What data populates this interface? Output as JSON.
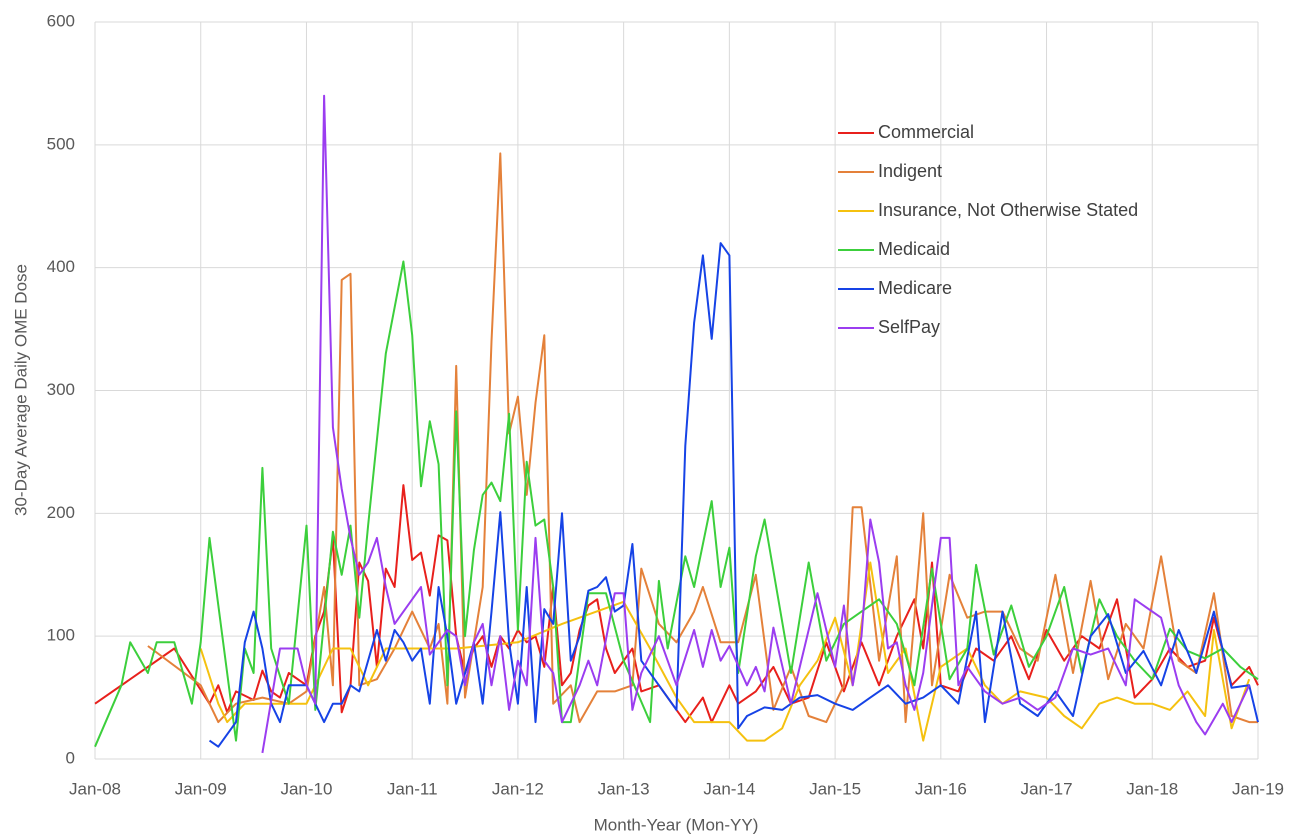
{
  "chart_data": {
    "type": "line",
    "xlabel": "Month-Year (Mon-YY)",
    "ylabel": "30-Day Average Daily OME Dose",
    "xlim": [
      "2008-01",
      "2019-01"
    ],
    "xticks": [
      {
        "value": "2008-01",
        "label": "Jan-08"
      },
      {
        "value": "2009-01",
        "label": "Jan-09"
      },
      {
        "value": "2010-01",
        "label": "Jan-10"
      },
      {
        "value": "2011-01",
        "label": "Jan-11"
      },
      {
        "value": "2012-01",
        "label": "Jan-12"
      },
      {
        "value": "2013-01",
        "label": "Jan-13"
      },
      {
        "value": "2014-01",
        "label": "Jan-14"
      },
      {
        "value": "2015-01",
        "label": "Jan-15"
      },
      {
        "value": "2016-01",
        "label": "Jan-16"
      },
      {
        "value": "2017-01",
        "label": "Jan-17"
      },
      {
        "value": "2018-01",
        "label": "Jan-18"
      },
      {
        "value": "2019-01",
        "label": "Jan-19"
      }
    ],
    "ylim": [
      0,
      600
    ],
    "yticks": [
      0,
      100,
      200,
      300,
      400,
      500,
      600
    ],
    "grid": true,
    "legend": "upper right",
    "series": [
      {
        "name": "Commercial",
        "color": "#e8201c",
        "x": [
          "2008-01",
          "2008-10",
          "2009-02",
          "2009-03",
          "2009-04",
          "2009-05",
          "2009-07",
          "2009-08",
          "2009-09",
          "2009-10",
          "2009-11",
          "2010-01",
          "2010-02",
          "2010-03",
          "2010-04",
          "2010-05",
          "2010-06",
          "2010-07",
          "2010-08",
          "2010-09",
          "2010-10",
          "2010-11",
          "2010-12",
          "2011-01",
          "2011-02",
          "2011-03",
          "2011-04",
          "2011-05",
          "2011-06",
          "2011-07",
          "2011-08",
          "2011-09",
          "2011-10",
          "2011-11",
          "2011-12",
          "2012-01",
          "2012-02",
          "2012-03",
          "2012-04",
          "2012-05",
          "2012-06",
          "2012-07",
          "2012-08",
          "2012-09",
          "2012-10",
          "2012-11",
          "2012-12",
          "2013-02",
          "2013-03",
          "2013-05",
          "2013-07",
          "2013-08",
          "2013-10",
          "2013-11",
          "2014-01",
          "2014-02",
          "2014-04",
          "2014-06",
          "2014-08",
          "2014-10",
          "2014-12",
          "2015-02",
          "2015-04",
          "2015-06",
          "2015-08",
          "2015-10",
          "2015-11",
          "2015-12",
          "2016-01",
          "2016-03",
          "2016-05",
          "2016-07",
          "2016-09",
          "2016-11",
          "2017-01",
          "2017-03",
          "2017-05",
          "2017-07",
          "2017-09",
          "2017-11",
          "2018-01",
          "2018-03",
          "2018-05",
          "2018-07",
          "2018-08",
          "2018-10",
          "2018-12",
          "2019-01"
        ],
        "values": [
          45,
          90,
          45,
          60,
          38,
          55,
          48,
          72,
          55,
          50,
          70,
          60,
          100,
          120,
          180,
          38,
          60,
          160,
          145,
          75,
          155,
          140,
          223,
          162,
          168,
          133,
          182,
          178,
          100,
          70,
          90,
          100,
          75,
          100,
          90,
          105,
          95,
          100,
          75,
          140,
          60,
          70,
          105,
          125,
          130,
          90,
          70,
          90,
          55,
          60,
          40,
          30,
          50,
          30,
          60,
          45,
          55,
          75,
          45,
          50,
          95,
          55,
          95,
          60,
          100,
          130,
          90,
          160,
          60,
          55,
          90,
          80,
          100,
          65,
          105,
          80,
          100,
          90,
          130,
          50,
          65,
          90,
          75,
          80,
          115,
          60,
          75,
          60
        ]
      },
      {
        "name": "Indigent",
        "color": "#e4813a",
        "x": [
          "2008-07",
          "2009-01",
          "2009-03",
          "2009-05",
          "2009-08",
          "2009-11",
          "2010-01",
          "2010-03",
          "2010-04",
          "2010-05",
          "2010-06",
          "2010-07",
          "2010-09",
          "2010-11",
          "2011-01",
          "2011-03",
          "2011-04",
          "2011-05",
          "2011-06",
          "2011-07",
          "2011-09",
          "2011-10",
          "2011-11",
          "2011-12",
          "2012-01",
          "2012-02",
          "2012-03",
          "2012-04",
          "2012-05",
          "2012-07",
          "2012-08",
          "2012-10",
          "2012-12",
          "2013-02",
          "2013-03",
          "2013-05",
          "2013-07",
          "2013-09",
          "2013-10",
          "2013-12",
          "2014-02",
          "2014-04",
          "2014-06",
          "2014-08",
          "2014-10",
          "2014-12",
          "2015-02",
          "2015-03",
          "2015-04",
          "2015-06",
          "2015-08",
          "2015-09",
          "2015-11",
          "2015-12",
          "2016-02",
          "2016-04",
          "2016-06",
          "2016-08",
          "2016-10",
          "2016-12",
          "2017-02",
          "2017-04",
          "2017-06",
          "2017-08",
          "2017-10",
          "2017-12",
          "2018-02",
          "2018-04",
          "2018-06",
          "2018-08",
          "2018-10",
          "2018-12",
          "2019-01"
        ],
        "values": [
          92,
          60,
          30,
          45,
          50,
          45,
          55,
          140,
          60,
          390,
          395,
          60,
          65,
          90,
          120,
          90,
          110,
          45,
          320,
          50,
          140,
          340,
          493,
          265,
          295,
          215,
          290,
          345,
          45,
          60,
          30,
          55,
          55,
          60,
          155,
          110,
          95,
          120,
          140,
          95,
          95,
          150,
          40,
          75,
          35,
          30,
          60,
          205,
          205,
          80,
          165,
          30,
          200,
          60,
          150,
          115,
          120,
          120,
          90,
          80,
          150,
          70,
          145,
          65,
          110,
          90,
          165,
          80,
          70,
          135,
          35,
          30,
          30
        ]
      },
      {
        "name": "Insurance, Not Otherwise Stated",
        "color": "#f5c10f",
        "x": [
          "2009-01",
          "2009-03",
          "2009-04",
          "2009-06",
          "2010-01",
          "2010-04",
          "2010-06",
          "2010-08",
          "2010-10",
          "2011-06",
          "2012-01",
          "2012-06",
          "2013-01",
          "2013-04",
          "2013-07",
          "2013-09",
          "2014-01",
          "2014-03",
          "2014-05",
          "2014-07",
          "2014-09",
          "2014-11",
          "2015-01",
          "2015-03",
          "2015-05",
          "2015-07",
          "2015-09",
          "2015-11",
          "2016-01",
          "2016-04",
          "2016-06",
          "2016-08",
          "2016-10",
          "2017-01",
          "2017-03",
          "2017-05",
          "2017-07",
          "2017-09",
          "2017-11",
          "2018-01",
          "2018-03",
          "2018-05",
          "2018-07",
          "2018-08",
          "2018-10",
          "2018-12"
        ],
        "values": [
          90,
          45,
          30,
          45,
          45,
          90,
          90,
          60,
          90,
          90,
          95,
          110,
          128,
          90,
          50,
          30,
          30,
          15,
          15,
          25,
          60,
          80,
          115,
          60,
          160,
          70,
          90,
          15,
          75,
          90,
          60,
          45,
          55,
          50,
          35,
          25,
          45,
          50,
          45,
          45,
          40,
          55,
          35,
          105,
          25,
          65
        ]
      },
      {
        "name": "Medicaid",
        "color": "#3ccf3c",
        "x": [
          "2008-01",
          "2008-04",
          "2008-05",
          "2008-07",
          "2008-08",
          "2008-10",
          "2008-12",
          "2009-01",
          "2009-02",
          "2009-05",
          "2009-06",
          "2009-07",
          "2009-08",
          "2009-09",
          "2009-11",
          "2010-01",
          "2010-02",
          "2010-04",
          "2010-05",
          "2010-06",
          "2010-07",
          "2010-08",
          "2010-10",
          "2010-12",
          "2011-01",
          "2011-02",
          "2011-03",
          "2011-04",
          "2011-05",
          "2011-06",
          "2011-07",
          "2011-08",
          "2011-09",
          "2011-10",
          "2011-11",
          "2011-12",
          "2012-01",
          "2012-02",
          "2012-03",
          "2012-04",
          "2012-05",
          "2012-06",
          "2012-07",
          "2012-09",
          "2012-11",
          "2013-01",
          "2013-04",
          "2013-05",
          "2013-06",
          "2013-08",
          "2013-09",
          "2013-11",
          "2013-12",
          "2014-01",
          "2014-02",
          "2014-04",
          "2014-05",
          "2014-08",
          "2014-10",
          "2014-12",
          "2015-02",
          "2015-04",
          "2015-06",
          "2015-08",
          "2015-10",
          "2015-12",
          "2016-02",
          "2016-04",
          "2016-05",
          "2016-07",
          "2016-09",
          "2016-11",
          "2017-01",
          "2017-03",
          "2017-05",
          "2017-07",
          "2017-09",
          "2017-11",
          "2018-01",
          "2018-03",
          "2018-05",
          "2018-07",
          "2018-09",
          "2018-11",
          "2019-01"
        ],
        "values": [
          10,
          60,
          95,
          70,
          95,
          95,
          45,
          95,
          180,
          15,
          90,
          70,
          237,
          90,
          45,
          190,
          40,
          185,
          150,
          190,
          115,
          190,
          330,
          405,
          345,
          222,
          275,
          240,
          60,
          283,
          100,
          170,
          215,
          225,
          210,
          281,
          105,
          242,
          190,
          195,
          140,
          30,
          30,
          135,
          135,
          80,
          30,
          145,
          90,
          165,
          140,
          210,
          140,
          172,
          70,
          165,
          195,
          70,
          160,
          80,
          110,
          120,
          130,
          110,
          60,
          155,
          65,
          90,
          158,
          85,
          125,
          75,
          100,
          140,
          70,
          130,
          100,
          80,
          65,
          106,
          88,
          82,
          90,
          75,
          65
        ]
      },
      {
        "name": "Medicare",
        "color": "#1643e6",
        "x": [
          "2009-02",
          "2009-03",
          "2009-05",
          "2009-06",
          "2009-07",
          "2009-08",
          "2009-09",
          "2009-10",
          "2009-11",
          "2009-12",
          "2010-01",
          "2010-02",
          "2010-03",
          "2010-04",
          "2010-05",
          "2010-06",
          "2010-07",
          "2010-09",
          "2010-10",
          "2010-11",
          "2010-12",
          "2011-01",
          "2011-02",
          "2011-03",
          "2011-04",
          "2011-05",
          "2011-06",
          "2011-08",
          "2011-09",
          "2011-10",
          "2011-11",
          "2011-12",
          "2012-01",
          "2012-02",
          "2012-03",
          "2012-04",
          "2012-05",
          "2012-06",
          "2012-07",
          "2012-08",
          "2012-09",
          "2012-10",
          "2012-11",
          "2012-12",
          "2013-01",
          "2013-02",
          "2013-03",
          "2013-05",
          "2013-07",
          "2013-08",
          "2013-09",
          "2013-10",
          "2013-11",
          "2013-12",
          "2014-01",
          "2014-02",
          "2014-03",
          "2014-05",
          "2014-07",
          "2014-09",
          "2014-11",
          "2015-01",
          "2015-03",
          "2015-05",
          "2015-07",
          "2015-09",
          "2015-11",
          "2016-01",
          "2016-03",
          "2016-05",
          "2016-06",
          "2016-08",
          "2016-10",
          "2016-12",
          "2017-02",
          "2017-04",
          "2017-06",
          "2017-08",
          "2017-10",
          "2017-12",
          "2018-02",
          "2018-04",
          "2018-06",
          "2018-08",
          "2018-10",
          "2018-12",
          "2019-01"
        ],
        "values": [
          15,
          10,
          30,
          95,
          120,
          90,
          45,
          30,
          60,
          60,
          60,
          45,
          30,
          45,
          45,
          60,
          55,
          105,
          80,
          105,
          95,
          80,
          90,
          45,
          140,
          100,
          45,
          95,
          45,
          120,
          201,
          95,
          45,
          140,
          30,
          122,
          110,
          200,
          80,
          100,
          137,
          140,
          148,
          120,
          125,
          175,
          80,
          60,
          40,
          255,
          355,
          410,
          342,
          420,
          410,
          25,
          35,
          42,
          40,
          50,
          52,
          45,
          40,
          50,
          60,
          45,
          50,
          60,
          45,
          120,
          30,
          120,
          45,
          35,
          55,
          35,
          100,
          118,
          70,
          88,
          60,
          105,
          70,
          120,
          58,
          60,
          30
        ]
      },
      {
        "name": "SelfPay",
        "color": "#9b3df0",
        "x": [
          "2009-08",
          "2009-10",
          "2009-12",
          "2010-01",
          "2010-02",
          "2010-03",
          "2010-04",
          "2010-05",
          "2010-06",
          "2010-07",
          "2010-08",
          "2010-09",
          "2010-10",
          "2010-11",
          "2011-01",
          "2011-02",
          "2011-03",
          "2011-04",
          "2011-05",
          "2011-06",
          "2011-07",
          "2011-08",
          "2011-09",
          "2011-10",
          "2011-11",
          "2011-12",
          "2012-01",
          "2012-02",
          "2012-03",
          "2012-04",
          "2012-05",
          "2012-06",
          "2012-08",
          "2012-09",
          "2012-10",
          "2012-12",
          "2013-01",
          "2013-02",
          "2013-03",
          "2013-05",
          "2013-07",
          "2013-09",
          "2013-10",
          "2013-11",
          "2013-12",
          "2014-01",
          "2014-03",
          "2014-04",
          "2014-05",
          "2014-06",
          "2014-08",
          "2014-09",
          "2014-11",
          "2015-01",
          "2015-02",
          "2015-03",
          "2015-04",
          "2015-05",
          "2015-06",
          "2015-07",
          "2015-08",
          "2015-09",
          "2015-10",
          "2015-11",
          "2016-01",
          "2016-02",
          "2016-03",
          "2016-04",
          "2016-06",
          "2016-08",
          "2016-10",
          "2016-12",
          "2017-02",
          "2017-04",
          "2017-06",
          "2017-08",
          "2017-10",
          "2017-11",
          "2018-01",
          "2018-02",
          "2018-04",
          "2018-06",
          "2018-07",
          "2018-09",
          "2018-10",
          "2018-12"
        ],
        "values": [
          5,
          90,
          90,
          60,
          45,
          540,
          270,
          220,
          180,
          150,
          160,
          180,
          140,
          110,
          130,
          140,
          85,
          95,
          105,
          100,
          60,
          95,
          110,
          60,
          100,
          40,
          80,
          60,
          180,
          80,
          70,
          30,
          60,
          80,
          60,
          135,
          135,
          40,
          70,
          100,
          60,
          105,
          75,
          105,
          80,
          92,
          60,
          75,
          55,
          107,
          45,
          75,
          135,
          75,
          125,
          60,
          100,
          195,
          160,
          90,
          95,
          60,
          40,
          70,
          180,
          180,
          60,
          75,
          55,
          45,
          50,
          40,
          50,
          90,
          85,
          90,
          60,
          130,
          120,
          115,
          60,
          30,
          20,
          45,
          30,
          60
        ]
      }
    ]
  }
}
